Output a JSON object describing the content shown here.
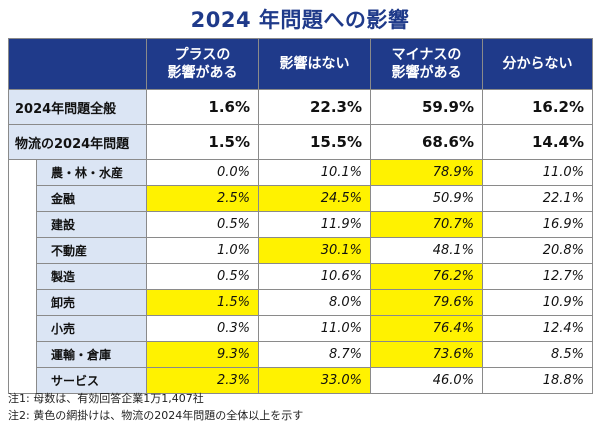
{
  "title": "2024 年問題への影響",
  "columns": [
    "プラスの\n影響がある",
    "影響はない",
    "マイナスの\n影響がある",
    "分からない"
  ],
  "main_rows": [
    {
      "label": "2024年問題全般",
      "values": [
        "1.6%",
        "22.3%",
        "59.9%",
        "16.2%"
      ]
    },
    {
      "label": "物流の2024年問題",
      "values": [
        "1.5%",
        "15.5%",
        "68.6%",
        "14.4%"
      ]
    }
  ],
  "sub_rows": [
    {
      "label": "農・林・水産",
      "values": [
        "0.0%",
        "10.1%",
        "78.9%",
        "11.0%"
      ],
      "highlight": [
        false,
        false,
        true,
        false
      ]
    },
    {
      "label": "金融",
      "values": [
        "2.5%",
        "24.5%",
        "50.9%",
        "22.1%"
      ],
      "highlight": [
        true,
        true,
        false,
        false
      ]
    },
    {
      "label": "建設",
      "values": [
        "0.5%",
        "11.9%",
        "70.7%",
        "16.9%"
      ],
      "highlight": [
        false,
        false,
        true,
        false
      ]
    },
    {
      "label": "不動産",
      "values": [
        "1.0%",
        "30.1%",
        "48.1%",
        "20.8%"
      ],
      "highlight": [
        false,
        true,
        false,
        false
      ]
    },
    {
      "label": "製造",
      "values": [
        "0.5%",
        "10.6%",
        "76.2%",
        "12.7%"
      ],
      "highlight": [
        false,
        false,
        true,
        false
      ]
    },
    {
      "label": "卸売",
      "values": [
        "1.5%",
        "8.0%",
        "79.6%",
        "10.9%"
      ],
      "highlight": [
        true,
        false,
        true,
        false
      ]
    },
    {
      "label": "小売",
      "values": [
        "0.3%",
        "11.0%",
        "76.4%",
        "12.4%"
      ],
      "highlight": [
        false,
        false,
        true,
        false
      ]
    },
    {
      "label": "運輸・倉庫",
      "values": [
        "9.3%",
        "8.7%",
        "73.6%",
        "8.5%"
      ],
      "highlight": [
        true,
        false,
        true,
        false
      ]
    },
    {
      "label": "サービス",
      "values": [
        "2.3%",
        "33.0%",
        "46.0%",
        "18.8%"
      ],
      "highlight": [
        true,
        true,
        false,
        false
      ]
    }
  ],
  "highlight_color": "#fff200",
  "header_color": "#1f3a8a",
  "label_bg_color": "#dbe5f4",
  "notes": [
    "注1:  母数は、有効回答企業1万1,407社",
    "注2:  黄色の網掛けは、物流の2024年問題の全体以上を示す"
  ]
}
